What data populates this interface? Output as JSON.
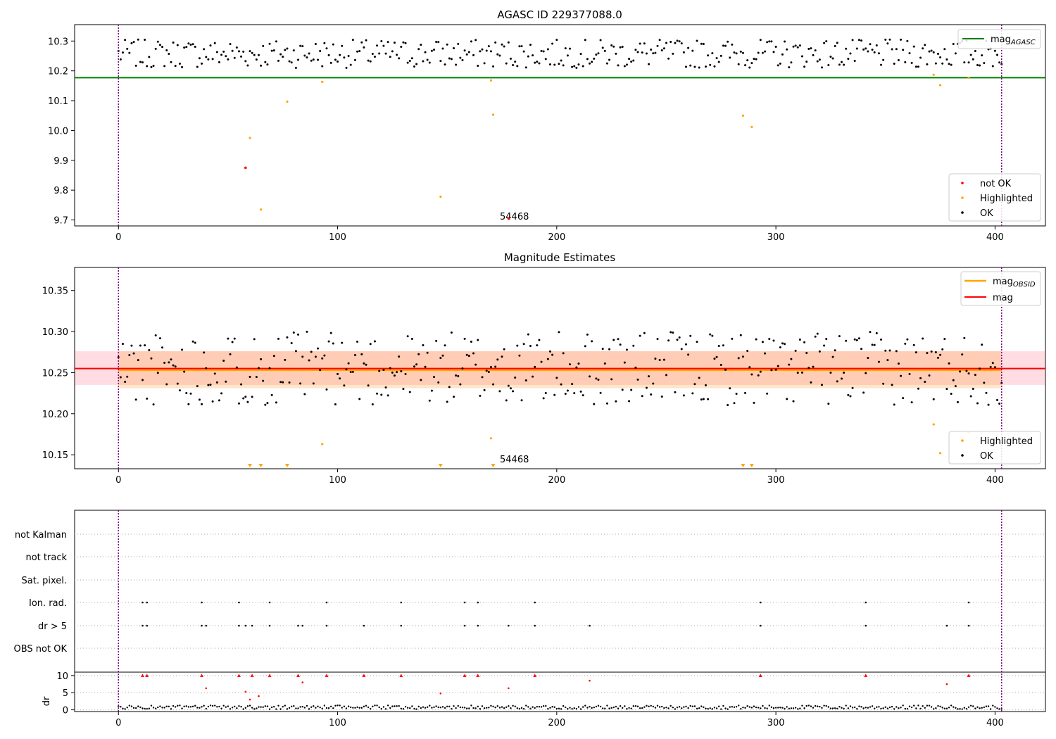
{
  "chart_data": [
    {
      "type": "scatter",
      "title": "AGASC ID 229377088.0",
      "xlim": [
        -20,
        423
      ],
      "ylim": [
        9.68,
        10.355
      ],
      "xticks": [
        "0",
        "100",
        "200",
        "300",
        "400"
      ],
      "yticks": [
        "9.7",
        "9.8",
        "9.9",
        "10.0",
        "10.1",
        "10.2",
        "10.3"
      ],
      "annotation": "54468",
      "annotation_x": 193,
      "annotation_y": 9.715,
      "vlines_x": [
        0,
        403
      ],
      "mag_agasc": 10.177,
      "mag_agasc_xrange": [
        -20,
        423
      ],
      "legend_top": {
        "items": [
          "mag_AGASC"
        ],
        "sub_main": "mag",
        "sub_script": "AGASC",
        "placement": "upper right"
      },
      "legend_bottom": {
        "items": [
          "not OK",
          "Highlighted",
          "OK"
        ],
        "placement": "lower right"
      },
      "series": {
        "not_ok": [
          [
            58,
            9.875
          ],
          [
            178,
            9.705
          ]
        ],
        "highlighted": [
          [
            60,
            9.975
          ],
          [
            65,
            9.735
          ],
          [
            77,
            10.097
          ],
          [
            93,
            10.163
          ],
          [
            147,
            9.778
          ],
          [
            170,
            10.168
          ],
          [
            171,
            10.053
          ],
          [
            285,
            10.05
          ],
          [
            289,
            10.012
          ],
          [
            372,
            10.187
          ],
          [
            375,
            10.152
          ],
          [
            388,
            10.177
          ]
        ]
      }
    },
    {
      "type": "scatter",
      "title": "Magnitude Estimates",
      "xlim": [
        -20,
        423
      ],
      "ylim": [
        10.133,
        10.378
      ],
      "xticks": [
        "0",
        "100",
        "200",
        "300",
        "400"
      ],
      "yticks": [
        "10.15",
        "10.20",
        "10.25",
        "10.30",
        "10.35"
      ],
      "annotation": "54468",
      "annotation_x": 193,
      "annotation_y": 10.142,
      "vlines_x": [
        0,
        403
      ],
      "mag": 10.255,
      "mag_band": [
        10.235,
        10.276
      ],
      "mag_obsid": 10.253,
      "mag_obsid_band": [
        10.231,
        10.276
      ],
      "legend_top": {
        "items": [
          "mag_OBSID",
          "mag"
        ],
        "sub_main": "mag",
        "sub_script": "OBSID",
        "placement": "upper right"
      },
      "legend_bottom": {
        "items": [
          "Highlighted",
          "OK"
        ],
        "placement": "lower right"
      },
      "series": {
        "highlighted": [
          [
            93,
            10.163
          ],
          [
            170,
            10.17
          ],
          [
            372,
            10.187
          ],
          [
            375,
            10.152
          ],
          [
            388,
            10.177
          ]
        ],
        "highlighted_offscale_x": [
          60,
          65,
          77,
          147,
          171,
          285,
          289
        ]
      }
    },
    {
      "type": "scatter",
      "title": "",
      "xlim": [
        -20,
        423
      ],
      "xticks": [
        "0",
        "100",
        "200",
        "300",
        "400"
      ],
      "flag_rows": [
        "not Kalman",
        "not track",
        "Sat. pixel.",
        "Ion. rad.",
        "dr > 5",
        "OBS not OK"
      ],
      "flags": {
        "Ion. rad.": [
          11,
          13,
          38,
          55,
          69,
          95,
          129,
          158,
          164,
          190,
          293,
          341,
          388
        ],
        "dr > 5": [
          11,
          13,
          38,
          40,
          55,
          58,
          61,
          69,
          82,
          84,
          95,
          112,
          129,
          158,
          164,
          178,
          190,
          215,
          293,
          341,
          378,
          388
        ]
      },
      "dr_ylabel": "dr",
      "dr_ylim": [
        -0.5,
        11
      ],
      "dr_yticks": [
        "0",
        "5",
        "10"
      ],
      "dr_outliers": [
        [
          11,
          10
        ],
        [
          13,
          10
        ],
        [
          38,
          10
        ],
        [
          40,
          6.3
        ],
        [
          55,
          10
        ],
        [
          58,
          5.3
        ],
        [
          60,
          3
        ],
        [
          61,
          10
        ],
        [
          64,
          4
        ],
        [
          69,
          10
        ],
        [
          82,
          10
        ],
        [
          84,
          8
        ],
        [
          95,
          10
        ],
        [
          112,
          10
        ],
        [
          129,
          10
        ],
        [
          147,
          4.8
        ],
        [
          158,
          10
        ],
        [
          164,
          10
        ],
        [
          178,
          6.3
        ],
        [
          190,
          10
        ],
        [
          215,
          8.5
        ],
        [
          293,
          10
        ],
        [
          341,
          10
        ],
        [
          378,
          7.5
        ],
        [
          388,
          10
        ]
      ]
    }
  ]
}
